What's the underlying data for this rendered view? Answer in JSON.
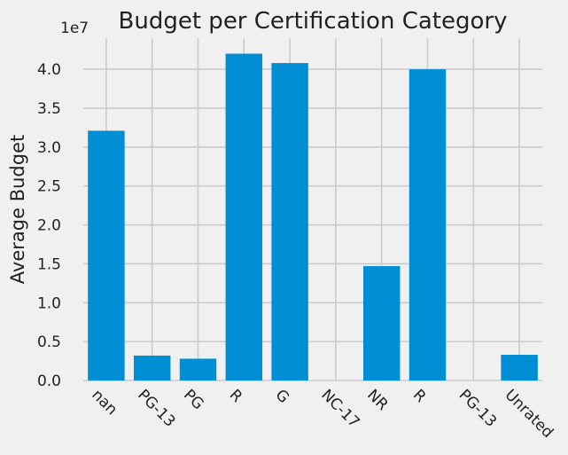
{
  "chart_data": {
    "type": "bar",
    "title": "Budget per Certification Category",
    "xlabel": "",
    "ylabel": "Average Budget",
    "offset_label": "1e7",
    "categories": [
      "nan",
      "PG-13",
      "PG",
      "R",
      "G",
      "NC-17",
      "NR",
      "R",
      "PG-13",
      "Unrated"
    ],
    "values": [
      32100000,
      3200000,
      2800000,
      42000000,
      40800000,
      0,
      14700000,
      40000000,
      0,
      3300000
    ],
    "ylim": [
      0,
      44000000
    ],
    "yticks": [
      0,
      5000000,
      10000000,
      15000000,
      20000000,
      25000000,
      30000000,
      35000000,
      40000000
    ],
    "ytick_labels": [
      "0.0",
      "0.5",
      "1.0",
      "1.5",
      "2.0",
      "2.5",
      "3.0",
      "3.5",
      "4.0"
    ],
    "grid": true,
    "colors": {
      "bar": "#008fd5",
      "background": "#f0f0f0",
      "grid": "#cbcbcb"
    }
  }
}
